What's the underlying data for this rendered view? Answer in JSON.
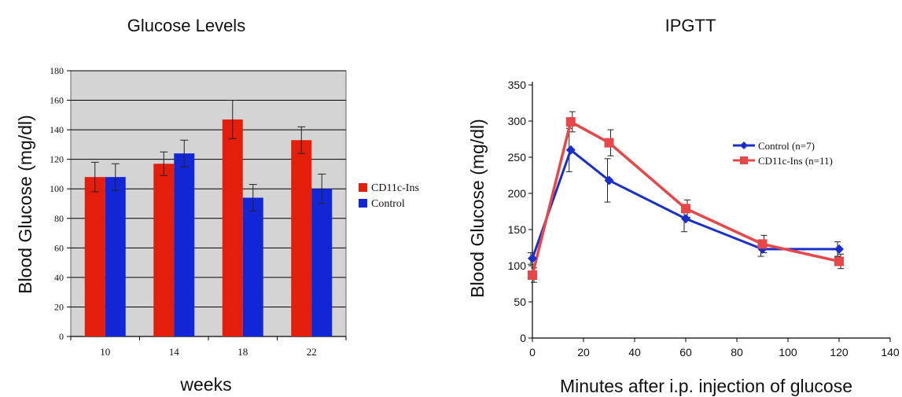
{
  "colors": {
    "red": "#e31f0b",
    "blue": "#1226d6",
    "plot_bg": "#d4d4d4",
    "line_blue": "#1a2fc9",
    "line_red": "#e8474a"
  },
  "chart_data": [
    {
      "type": "bar",
      "title": "Glucose Levels",
      "xlabel": "weeks",
      "ylabel": "Blood Glucose (mg/dl)",
      "categories": [
        "10",
        "14",
        "18",
        "22"
      ],
      "ylim": [
        0,
        180
      ],
      "yticks": [
        0,
        20,
        40,
        60,
        80,
        100,
        120,
        140,
        160,
        180
      ],
      "grid": true,
      "legend_position": "right",
      "series": [
        {
          "name": "CD11c-Ins",
          "color": "#e31f0b",
          "values": [
            108,
            117,
            147,
            133
          ],
          "errors": [
            10,
            8,
            13,
            9
          ]
        },
        {
          "name": "Control",
          "color": "#1226d6",
          "values": [
            108,
            124,
            94,
            100
          ],
          "errors": [
            9,
            9,
            9,
            10
          ]
        }
      ]
    },
    {
      "type": "line",
      "title": "IPGTT",
      "xlabel": "Minutes after i.p. injection of glucose",
      "ylabel": "Blood Glucose (mg/dl)",
      "xlim": [
        0,
        140
      ],
      "ylim": [
        0,
        350
      ],
      "xticks": [
        0,
        20,
        40,
        60,
        80,
        100,
        120,
        140
      ],
      "yticks": [
        0,
        50,
        100,
        150,
        200,
        250,
        300,
        350
      ],
      "grid": false,
      "legend_position": "top-right",
      "series": [
        {
          "name": "Control (n=7)",
          "color": "#1a2fc9",
          "marker": "diamond",
          "x": [
            0,
            15,
            30,
            60,
            90,
            120
          ],
          "y": [
            110,
            260,
            218,
            165,
            123,
            123
          ],
          "errors": [
            8,
            30,
            30,
            18,
            10,
            10
          ]
        },
        {
          "name": "CD11c-Ins (n=11)",
          "color": "#e8474a",
          "marker": "square",
          "x": [
            0,
            15,
            30,
            60,
            90,
            120
          ],
          "y": [
            87,
            299,
            270,
            179,
            130,
            106
          ],
          "errors": [
            10,
            14,
            18,
            12,
            12,
            10
          ]
        }
      ]
    }
  ]
}
